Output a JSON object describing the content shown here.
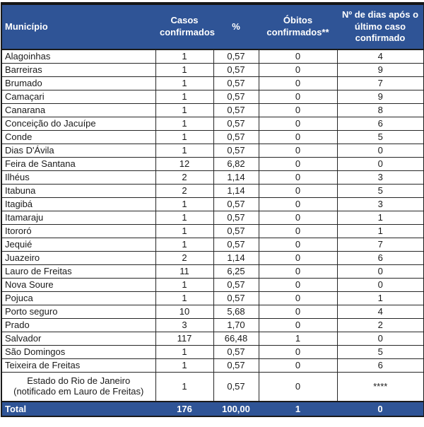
{
  "colors": {
    "header_bg": "#2F5496",
    "header_text": "#FFFFFF",
    "body_text": "#1A1A1A",
    "border": "#1A1A1A"
  },
  "header": {
    "columns": [
      "Município",
      "Casos confirmados",
      "%",
      "Óbitos confirmados**",
      "Nº de dias após o último caso confirmado"
    ]
  },
  "rows": [
    {
      "municipio": "Alagoinhas",
      "casos": "1",
      "pct": "0,57",
      "obitos": "0",
      "dias": "4"
    },
    {
      "municipio": "Barreiras",
      "casos": "1",
      "pct": "0,57",
      "obitos": "0",
      "dias": "9"
    },
    {
      "municipio": "Brumado",
      "casos": "1",
      "pct": "0,57",
      "obitos": "0",
      "dias": "7"
    },
    {
      "municipio": "Camaçari",
      "casos": "1",
      "pct": "0,57",
      "obitos": "0",
      "dias": "9"
    },
    {
      "municipio": "Canarana",
      "casos": "1",
      "pct": "0,57",
      "obitos": "0",
      "dias": "8"
    },
    {
      "municipio": "Conceição do Jacuípe",
      "casos": "1",
      "pct": "0,57",
      "obitos": "0",
      "dias": "6"
    },
    {
      "municipio": "Conde",
      "casos": "1",
      "pct": "0,57",
      "obitos": "0",
      "dias": "5"
    },
    {
      "municipio": "Dias D'Ávila",
      "casos": "1",
      "pct": "0,57",
      "obitos": "0",
      "dias": "0"
    },
    {
      "municipio": "Feira de Santana",
      "casos": "12",
      "pct": "6,82",
      "obitos": "0",
      "dias": "0"
    },
    {
      "municipio": "Ilhéus",
      "casos": "2",
      "pct": "1,14",
      "obitos": "0",
      "dias": "3"
    },
    {
      "municipio": "Itabuna",
      "casos": "2",
      "pct": "1,14",
      "obitos": "0",
      "dias": "5"
    },
    {
      "municipio": "Itagibá",
      "casos": "1",
      "pct": "0,57",
      "obitos": "0",
      "dias": "3"
    },
    {
      "municipio": "Itamaraju",
      "casos": "1",
      "pct": "0,57",
      "obitos": "0",
      "dias": "1"
    },
    {
      "municipio": "Itororó",
      "casos": "1",
      "pct": "0,57",
      "obitos": "0",
      "dias": "1"
    },
    {
      "municipio": "Jequié",
      "casos": "1",
      "pct": "0,57",
      "obitos": "0",
      "dias": "7"
    },
    {
      "municipio": "Juazeiro",
      "casos": "2",
      "pct": "1,14",
      "obitos": "0",
      "dias": "6"
    },
    {
      "municipio": "Lauro de Freitas",
      "casos": "11",
      "pct": "6,25",
      "obitos": "0",
      "dias": "0"
    },
    {
      "municipio": "Nova Soure",
      "casos": "1",
      "pct": "0,57",
      "obitos": "0",
      "dias": "0"
    },
    {
      "municipio": "Pojuca",
      "casos": "1",
      "pct": "0,57",
      "obitos": "0",
      "dias": "1"
    },
    {
      "municipio": "Porto seguro",
      "casos": "10",
      "pct": "5,68",
      "obitos": "0",
      "dias": "4"
    },
    {
      "municipio": "Prado",
      "casos": "3",
      "pct": "1,70",
      "obitos": "0",
      "dias": "2"
    },
    {
      "municipio": "Salvador",
      "casos": "117",
      "pct": "66,48",
      "obitos": "1",
      "dias": "0"
    },
    {
      "municipio": "São Domingos",
      "casos": "1",
      "pct": "0,57",
      "obitos": "0",
      "dias": "5"
    },
    {
      "municipio": "Teixeira de Freitas",
      "casos": "1",
      "pct": "0,57",
      "obitos": "0",
      "dias": "6"
    }
  ],
  "rio_row": {
    "municipio": "Estado do Rio de Janeiro (notificado em Lauro de Freitas)",
    "casos": "1",
    "pct": "0,57",
    "obitos": "0",
    "dias": "****"
  },
  "total_row": {
    "label": "Total",
    "casos": "176",
    "pct": "100,00",
    "obitos": "1",
    "dias": "0"
  }
}
